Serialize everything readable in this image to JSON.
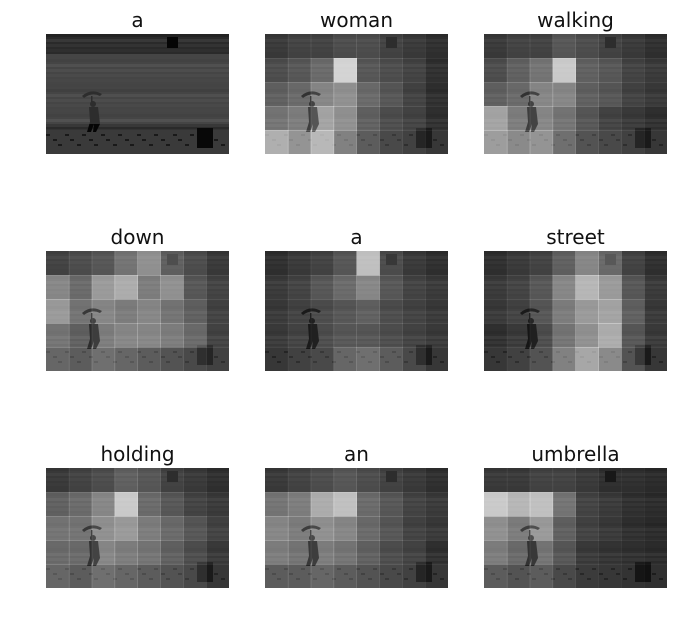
{
  "figure": {
    "panels": [
      {
        "word": "a",
        "attention": null
      },
      {
        "word": "woman",
        "attention": [
          [
            0.15,
            0.2,
            0.2,
            0.25,
            0.25,
            0.2,
            0.15,
            0.1
          ],
          [
            0.25,
            0.3,
            0.4,
            0.95,
            0.3,
            0.25,
            0.2,
            0.1
          ],
          [
            0.35,
            0.4,
            0.55,
            0.6,
            0.4,
            0.3,
            0.2,
            0.1
          ],
          [
            0.45,
            0.5,
            0.7,
            0.6,
            0.35,
            0.25,
            0.2,
            0.1
          ],
          [
            0.75,
            0.6,
            0.8,
            0.5,
            0.3,
            0.2,
            0.15,
            0.1
          ]
        ]
      },
      {
        "word": "walking",
        "attention": [
          [
            0.15,
            0.2,
            0.2,
            0.3,
            0.25,
            0.2,
            0.15,
            0.1
          ],
          [
            0.25,
            0.35,
            0.45,
            0.9,
            0.35,
            0.3,
            0.2,
            0.15
          ],
          [
            0.35,
            0.4,
            0.55,
            0.55,
            0.35,
            0.3,
            0.2,
            0.15
          ],
          [
            0.7,
            0.5,
            0.55,
            0.45,
            0.3,
            0.2,
            0.15,
            0.1
          ],
          [
            0.65,
            0.55,
            0.6,
            0.4,
            0.25,
            0.2,
            0.15,
            0.1
          ]
        ]
      },
      {
        "word": "down",
        "attention": [
          [
            0.2,
            0.25,
            0.3,
            0.45,
            0.6,
            0.35,
            0.25,
            0.15
          ],
          [
            0.55,
            0.4,
            0.65,
            0.75,
            0.5,
            0.6,
            0.3,
            0.2
          ],
          [
            0.65,
            0.45,
            0.55,
            0.5,
            0.55,
            0.45,
            0.35,
            0.2
          ],
          [
            0.45,
            0.35,
            0.5,
            0.55,
            0.55,
            0.5,
            0.4,
            0.2
          ],
          [
            0.35,
            0.3,
            0.4,
            0.35,
            0.3,
            0.25,
            0.2,
            0.15
          ]
        ]
      },
      {
        "word": "a",
        "attention": [
          [
            0.1,
            0.15,
            0.2,
            0.3,
            0.85,
            0.25,
            0.15,
            0.1
          ],
          [
            0.15,
            0.2,
            0.3,
            0.4,
            0.55,
            0.3,
            0.2,
            0.15
          ],
          [
            0.15,
            0.2,
            0.25,
            0.3,
            0.35,
            0.25,
            0.2,
            0.15
          ],
          [
            0.15,
            0.2,
            0.25,
            0.3,
            0.3,
            0.25,
            0.2,
            0.15
          ],
          [
            0.1,
            0.15,
            0.2,
            0.35,
            0.4,
            0.3,
            0.2,
            0.1
          ]
        ]
      },
      {
        "word": "street",
        "attention": [
          [
            0.1,
            0.15,
            0.2,
            0.35,
            0.55,
            0.4,
            0.2,
            0.1
          ],
          [
            0.15,
            0.2,
            0.3,
            0.55,
            0.8,
            0.65,
            0.3,
            0.15
          ],
          [
            0.15,
            0.2,
            0.3,
            0.5,
            0.65,
            0.7,
            0.35,
            0.15
          ],
          [
            0.1,
            0.15,
            0.25,
            0.45,
            0.6,
            0.75,
            0.3,
            0.15
          ],
          [
            0.1,
            0.15,
            0.25,
            0.5,
            0.7,
            0.55,
            0.25,
            0.1
          ]
        ]
      },
      {
        "word": "holding",
        "attention": [
          [
            0.15,
            0.2,
            0.25,
            0.35,
            0.3,
            0.2,
            0.15,
            0.1
          ],
          [
            0.35,
            0.4,
            0.55,
            0.9,
            0.4,
            0.3,
            0.2,
            0.15
          ],
          [
            0.45,
            0.45,
            0.6,
            0.65,
            0.5,
            0.4,
            0.3,
            0.2
          ],
          [
            0.4,
            0.4,
            0.55,
            0.5,
            0.45,
            0.35,
            0.25,
            0.15
          ],
          [
            0.35,
            0.3,
            0.4,
            0.35,
            0.3,
            0.25,
            0.2,
            0.1
          ]
        ]
      },
      {
        "word": "an",
        "attention": [
          [
            0.15,
            0.2,
            0.25,
            0.3,
            0.25,
            0.2,
            0.15,
            0.1
          ],
          [
            0.45,
            0.5,
            0.75,
            0.85,
            0.4,
            0.3,
            0.2,
            0.15
          ],
          [
            0.55,
            0.5,
            0.6,
            0.55,
            0.4,
            0.3,
            0.2,
            0.15
          ],
          [
            0.5,
            0.45,
            0.5,
            0.45,
            0.35,
            0.25,
            0.2,
            0.1
          ],
          [
            0.3,
            0.3,
            0.35,
            0.3,
            0.25,
            0.2,
            0.15,
            0.1
          ]
        ]
      },
      {
        "word": "umbrella",
        "attention": [
          [
            0.15,
            0.15,
            0.2,
            0.2,
            0.15,
            0.1,
            0.1,
            0.08
          ],
          [
            0.9,
            0.8,
            0.85,
            0.45,
            0.2,
            0.15,
            0.1,
            0.08
          ],
          [
            0.6,
            0.5,
            0.65,
            0.35,
            0.2,
            0.15,
            0.1,
            0.08
          ],
          [
            0.5,
            0.4,
            0.45,
            0.3,
            0.15,
            0.12,
            0.1,
            0.08
          ],
          [
            0.3,
            0.25,
            0.3,
            0.2,
            0.12,
            0.1,
            0.08,
            0.06
          ]
        ]
      }
    ]
  }
}
